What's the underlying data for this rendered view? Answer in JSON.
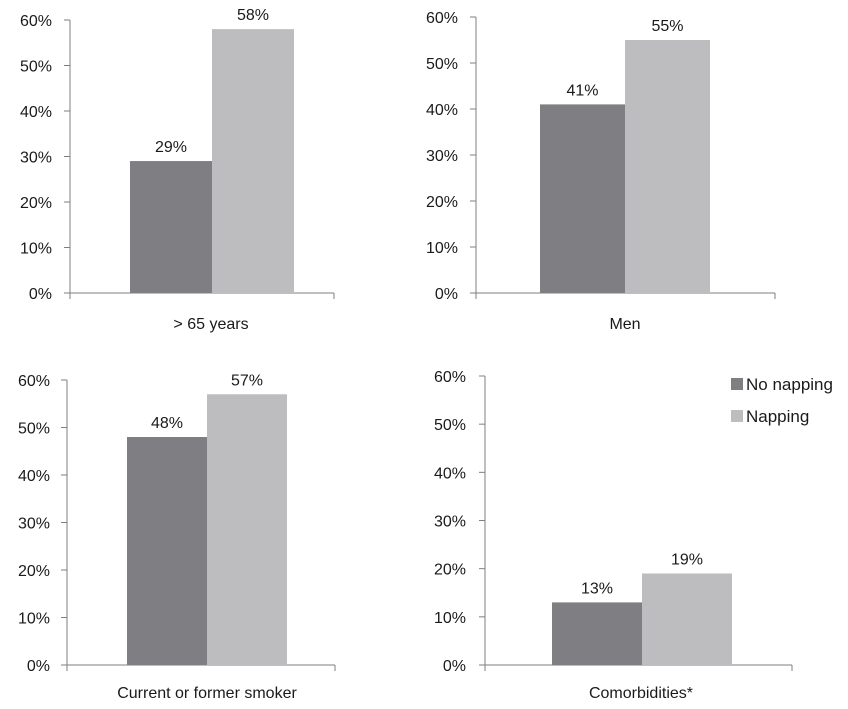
{
  "colors": {
    "no_napping": "#7f7f83",
    "napping": "#bdbdc0",
    "axis": "#7f7f7f"
  },
  "legend": [
    {
      "label": "No napping",
      "color": "#7f7f83"
    },
    {
      "label": "Napping",
      "color": "#bdbdc0"
    }
  ],
  "chart_data": [
    {
      "type": "bar",
      "categories": [
        "> 65 years"
      ],
      "series": [
        {
          "name": "No napping",
          "values": [
            29
          ],
          "labels": [
            "29%"
          ]
        },
        {
          "name": "Napping",
          "values": [
            58
          ],
          "labels": [
            "58%"
          ]
        }
      ],
      "ylim": [
        0,
        60
      ],
      "yticks": [
        "0%",
        "10%",
        "20%",
        "30%",
        "40%",
        "50%",
        "60%"
      ],
      "grid": false
    },
    {
      "type": "bar",
      "categories": [
        "Men"
      ],
      "series": [
        {
          "name": "No napping",
          "values": [
            41
          ],
          "labels": [
            "41%"
          ]
        },
        {
          "name": "Napping",
          "values": [
            55
          ],
          "labels": [
            "55%"
          ]
        }
      ],
      "ylim": [
        0,
        60
      ],
      "yticks": [
        "0%",
        "10%",
        "20%",
        "30%",
        "40%",
        "50%",
        "60%"
      ],
      "grid": false
    },
    {
      "type": "bar",
      "categories": [
        "Current or former smoker"
      ],
      "series": [
        {
          "name": "No napping",
          "values": [
            48
          ],
          "labels": [
            "48%"
          ]
        },
        {
          "name": "Napping",
          "values": [
            57
          ],
          "labels": [
            "57%"
          ]
        }
      ],
      "ylim": [
        0,
        60
      ],
      "yticks": [
        "0%",
        "10%",
        "20%",
        "30%",
        "40%",
        "50%",
        "60%"
      ],
      "grid": false
    },
    {
      "type": "bar",
      "categories": [
        "Comorbidities*"
      ],
      "series": [
        {
          "name": "No napping",
          "values": [
            13
          ],
          "labels": [
            "13%"
          ]
        },
        {
          "name": "Napping",
          "values": [
            19
          ],
          "labels": [
            "19%"
          ]
        }
      ],
      "ylim": [
        0,
        60
      ],
      "yticks": [
        "0%",
        "10%",
        "20%",
        "30%",
        "40%",
        "50%",
        "60%"
      ],
      "grid": false,
      "legend_position": "top-right"
    }
  ]
}
